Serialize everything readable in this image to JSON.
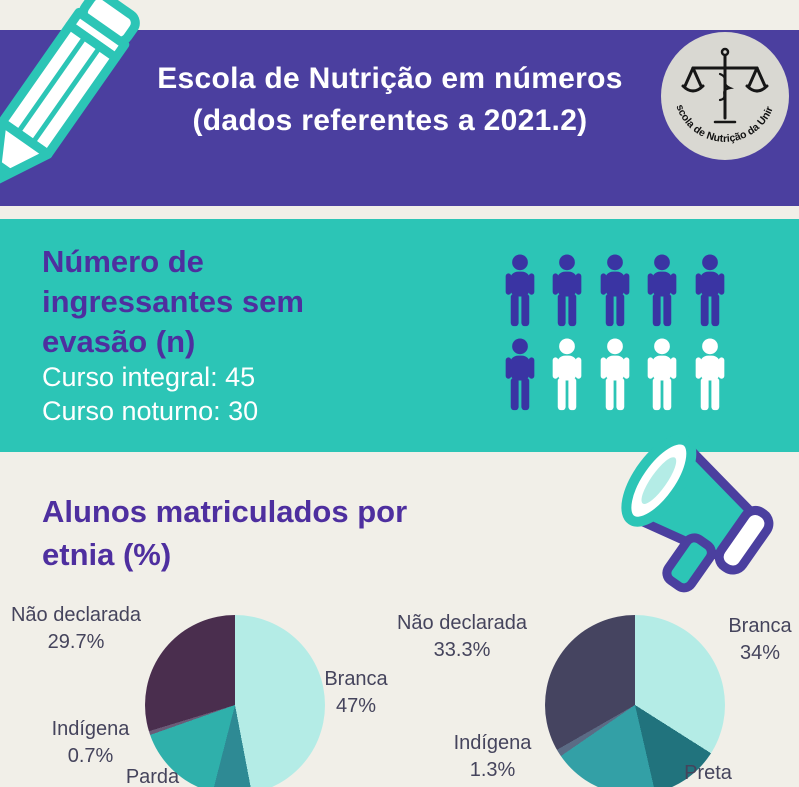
{
  "header": {
    "band_color": "#4b3f9f",
    "title_lines": [
      "Escola de Nutrição em números",
      "(dados referentes a 2021.2)"
    ],
    "logo_caption": "Escola de Nutrição da Unirio"
  },
  "ingressantes": {
    "band_color": "#2cc5b6",
    "heading_lines": [
      "Número de",
      "ingressantes sem",
      "evasão (n)"
    ],
    "stats": [
      "Curso integral: 45",
      "Curso noturno: 30"
    ],
    "pictogram": {
      "total": 10,
      "per_row": 5,
      "filled": 6,
      "filled_color": "#3a34a3",
      "empty_color": "#ffffff"
    }
  },
  "etnia": {
    "heading_lines": [
      "Alunos matriculados por",
      "etnia (%)"
    ]
  },
  "chart_data": [
    {
      "type": "pie",
      "position": "left",
      "title": "Alunos matriculados por etnia (%)",
      "legend": "none",
      "labels_outside": true,
      "slices": [
        {
          "label": "Branca",
          "value": 47,
          "pct_label": "47%",
          "color": "#b4ece6"
        },
        {
          "value": 7.0,
          "color": "#2e8a94",
          "estimated": true
        },
        {
          "label": "Parda",
          "value": 15.6,
          "color": "#2fb0ab",
          "estimated": true
        },
        {
          "label": "Indígena",
          "value": 0.7,
          "pct_label": "0.7%",
          "color": "#6a5a77"
        },
        {
          "label": "Não declarada",
          "value": 29.7,
          "pct_label": "29.7%",
          "color": "#4a2e4e"
        }
      ]
    },
    {
      "type": "pie",
      "position": "right",
      "title": "Alunos matriculados por etnia (%)",
      "legend": "none",
      "labels_outside": true,
      "slices": [
        {
          "label": "Branca",
          "value": 34,
          "pct_label": "34%",
          "color": "#b4ece6"
        },
        {
          "label": "Preta",
          "value": 12.4,
          "color": "#21737d",
          "estimated": true
        },
        {
          "value": 19.0,
          "color": "#33a0a6",
          "estimated": true
        },
        {
          "label": "Indígena",
          "value": 1.3,
          "pct_label": "1.3%",
          "color": "#5b6b85"
        },
        {
          "label": "Não declarada",
          "value": 33.3,
          "pct_label": "33.3%",
          "color": "#454460"
        }
      ]
    }
  ],
  "palette": {
    "background": "#f1efe8",
    "purple": "#4b3f9f",
    "teal": "#2cc5b6",
    "heading_purple": "#4e2f9f",
    "label_text": "#45445c"
  }
}
